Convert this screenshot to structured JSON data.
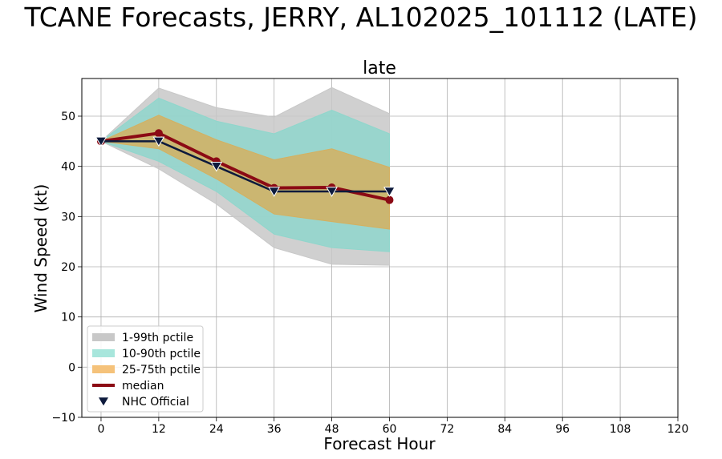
{
  "chart_data": {
    "type": "line",
    "suptitle": "TCANE Forecasts, JERRY, AL102025_101112 (LATE)",
    "title": "late",
    "xlabel": "Forecast Hour",
    "ylabel": "Wind Speed (kt)",
    "xlim": [
      -4,
      120
    ],
    "ylim": [
      -10,
      57.5
    ],
    "xticks": [
      0,
      12,
      24,
      36,
      48,
      60,
      72,
      84,
      96,
      108,
      120
    ],
    "yticks": [
      -10,
      0,
      10,
      20,
      30,
      40,
      50
    ],
    "grid": true,
    "legend_position": "lower-left",
    "x": [
      0,
      12,
      24,
      36,
      48,
      60
    ],
    "bands": [
      {
        "name": "1-99th pctile",
        "color": "#c8c8c8",
        "lower": [
          45,
          39.5,
          32.5,
          23.8,
          20.5,
          20.3
        ],
        "upper": [
          45,
          55.6,
          51.7,
          49.8,
          55.7,
          50.5
        ]
      },
      {
        "name": "10-90th pctile",
        "color": "#8fd6cc",
        "lower": [
          45,
          41,
          35,
          26.5,
          23.8,
          23
        ],
        "upper": [
          45,
          53.6,
          49,
          46.5,
          51.2,
          46.5
        ]
      },
      {
        "name": "25-75th pctile",
        "color": "#d4b060",
        "lower": [
          45,
          43.5,
          37.5,
          30.5,
          29,
          27.5
        ],
        "upper": [
          45,
          50.2,
          45.3,
          41.3,
          43.5,
          39.8
        ]
      }
    ],
    "series": [
      {
        "name": "median",
        "color": "#8b0a14",
        "values": [
          45,
          46.6,
          41,
          35.7,
          35.8,
          33.3
        ]
      },
      {
        "name": "NHC Official",
        "color": "#0d1a3c",
        "values": [
          45,
          45,
          40,
          35,
          35,
          35
        ]
      }
    ],
    "legend": [
      {
        "label": "1-99th pctile",
        "kind": "patch",
        "color": "#c8c8c8"
      },
      {
        "label": "10-90th pctile",
        "kind": "patch",
        "color": "#a8e6dc"
      },
      {
        "label": "25-75th pctile",
        "kind": "patch",
        "color": "#f5c27a"
      },
      {
        "label": "median",
        "kind": "line",
        "color": "#8b0a14"
      },
      {
        "label": "NHC Official",
        "kind": "marker",
        "color": "#0d1a3c"
      }
    ]
  }
}
